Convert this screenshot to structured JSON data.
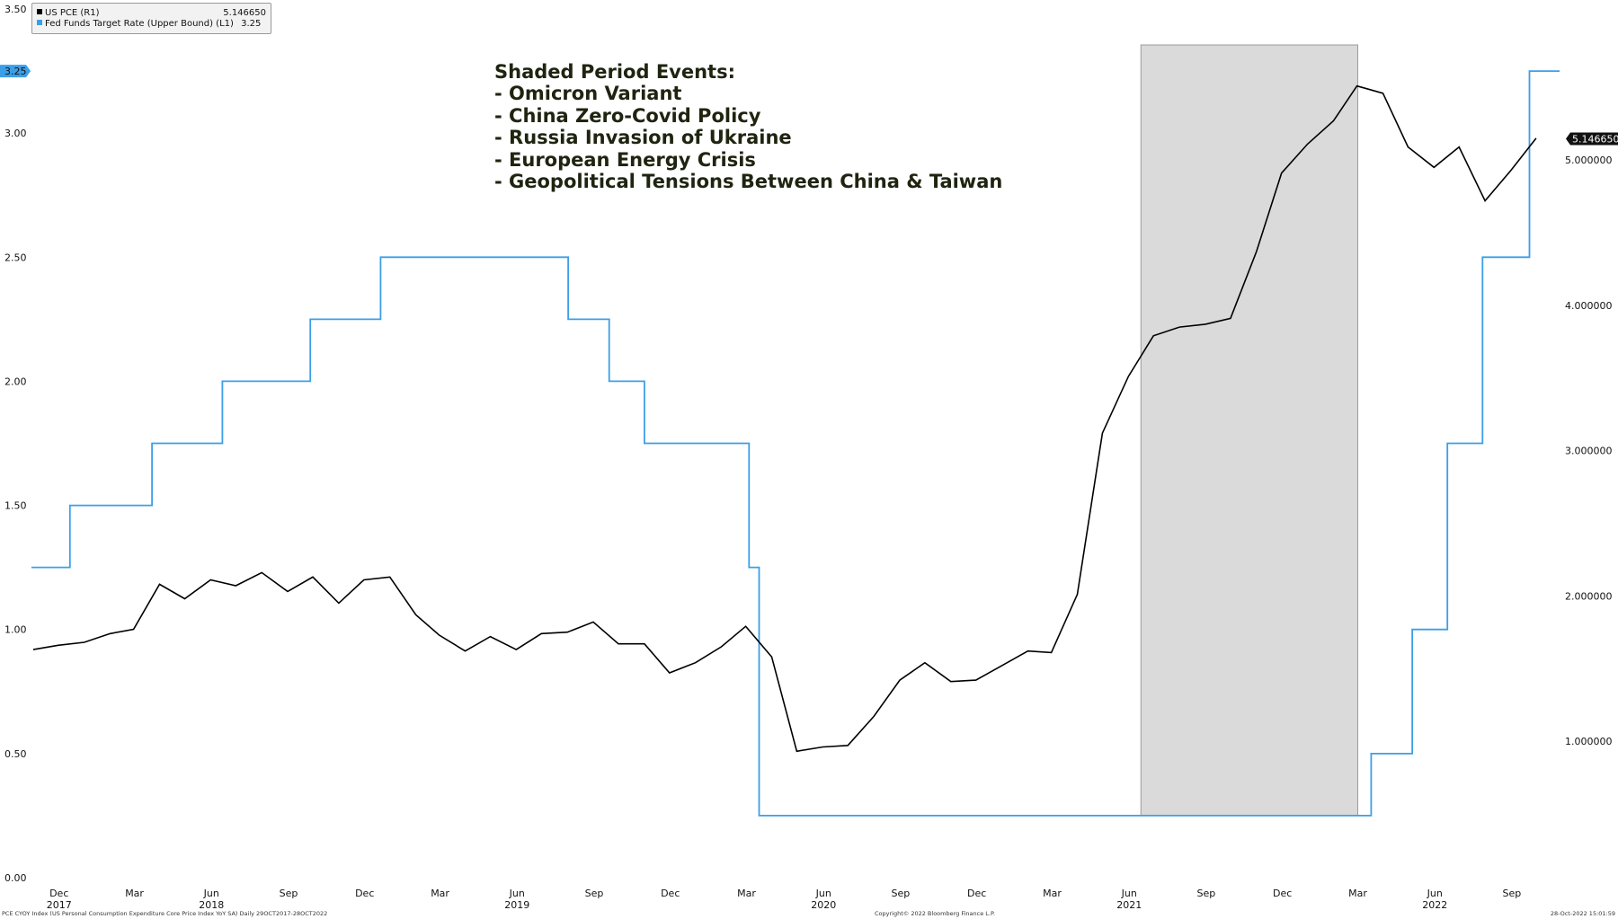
{
  "legend": [
    {
      "label": "US PCE (R1)",
      "value": "5.146650",
      "color": "#000000"
    },
    {
      "label": "Fed Funds Target Rate (Upper Bound) (L1)",
      "value": "3.25",
      "color": "#3b9fe8"
    }
  ],
  "annotation": {
    "title": "Shaded Period Events:",
    "items": [
      "- Omicron Variant",
      "- China Zero-Covid Policy",
      "- Russia Invasion of Ukraine",
      "- European Energy Crisis",
      "- Geopolitical Tensions Between China & Taiwan"
    ]
  },
  "footer": {
    "left": "PCE CYOY Index (US Personal Consumption Expenditure Core Price Index YoY SA)  Daily 29OCT2017-28OCT2022",
    "center": "Copyright© 2022 Bloomberg Finance L.P.",
    "right": "28-Oct-2022 15:01:59"
  },
  "chart_data": {
    "type": "line",
    "title": "",
    "x_range": [
      "2017-10-29",
      "2022-10-28"
    ],
    "month_ticks": [
      {
        "label": "Dec",
        "date": "2017-12-01"
      },
      {
        "label": "Mar",
        "date": "2018-03-01"
      },
      {
        "label": "Jun",
        "date": "2018-06-01"
      },
      {
        "label": "Sep",
        "date": "2018-09-01"
      },
      {
        "label": "Dec",
        "date": "2018-12-01"
      },
      {
        "label": "Mar",
        "date": "2019-03-01"
      },
      {
        "label": "Jun",
        "date": "2019-06-01"
      },
      {
        "label": "Sep",
        "date": "2019-09-01"
      },
      {
        "label": "Dec",
        "date": "2019-12-01"
      },
      {
        "label": "Mar",
        "date": "2020-03-01"
      },
      {
        "label": "Jun",
        "date": "2020-06-01"
      },
      {
        "label": "Sep",
        "date": "2020-09-01"
      },
      {
        "label": "Dec",
        "date": "2020-12-01"
      },
      {
        "label": "Mar",
        "date": "2021-03-01"
      },
      {
        "label": "Jun",
        "date": "2021-06-01"
      },
      {
        "label": "Sep",
        "date": "2021-09-01"
      },
      {
        "label": "Dec",
        "date": "2021-12-01"
      },
      {
        "label": "Mar",
        "date": "2022-03-01"
      },
      {
        "label": "Jun",
        "date": "2022-06-01"
      },
      {
        "label": "Sep",
        "date": "2022-09-01"
      }
    ],
    "year_ticks": [
      {
        "label": "2017",
        "date": "2017-12-01"
      },
      {
        "label": "2018",
        "date": "2018-06-01"
      },
      {
        "label": "2019",
        "date": "2019-06-01"
      },
      {
        "label": "2020",
        "date": "2020-06-01"
      },
      {
        "label": "2021",
        "date": "2021-06-01"
      },
      {
        "label": "2022",
        "date": "2022-06-01"
      }
    ],
    "left_axis": {
      "ylim": [
        0,
        3.5
      ],
      "ticks": [
        "0.00",
        "0.50",
        "1.00",
        "1.50",
        "2.00",
        "2.50",
        "3.00",
        "3.50"
      ]
    },
    "right_axis": {
      "ylim": [
        0.06,
        6.04
      ],
      "ticks": [
        "1.000000",
        "2.000000",
        "3.000000",
        "4.000000",
        "5.000000"
      ]
    },
    "shaded_period": [
      "2021-06-15",
      "2022-03-01"
    ],
    "last_value_labels": {
      "left": "3.25",
      "right": "5.146650"
    },
    "series": [
      {
        "name": "Fed Funds Target Rate (Upper Bound)",
        "axis": "left",
        "color": "#3b9fe8",
        "step": true,
        "points": [
          [
            "2017-10-29",
            1.25
          ],
          [
            "2017-12-14",
            1.5
          ],
          [
            "2018-03-22",
            1.75
          ],
          [
            "2018-06-14",
            2.0
          ],
          [
            "2018-09-27",
            2.25
          ],
          [
            "2018-12-20",
            2.5
          ],
          [
            "2019-08-01",
            2.25
          ],
          [
            "2019-09-19",
            2.0
          ],
          [
            "2019-10-31",
            1.75
          ],
          [
            "2020-03-04",
            1.25
          ],
          [
            "2020-03-16",
            0.25
          ],
          [
            "2022-03-17",
            0.5
          ],
          [
            "2022-05-05",
            1.0
          ],
          [
            "2022-06-16",
            1.75
          ],
          [
            "2022-07-28",
            2.5
          ],
          [
            "2022-09-22",
            3.25
          ],
          [
            "2022-10-28",
            3.25
          ]
        ]
      },
      {
        "name": "US PCE",
        "axis": "right",
        "color": "#000000",
        "step": false,
        "points": [
          [
            "2017-10-31",
            1.63
          ],
          [
            "2017-11-30",
            1.66
          ],
          [
            "2017-12-31",
            1.68
          ],
          [
            "2018-01-31",
            1.74
          ],
          [
            "2018-02-28",
            1.77
          ],
          [
            "2018-03-31",
            2.08
          ],
          [
            "2018-04-30",
            1.98
          ],
          [
            "2018-05-31",
            2.11
          ],
          [
            "2018-06-30",
            2.07
          ],
          [
            "2018-07-31",
            2.16
          ],
          [
            "2018-08-31",
            2.03
          ],
          [
            "2018-09-30",
            2.13
          ],
          [
            "2018-10-31",
            1.95
          ],
          [
            "2018-11-30",
            2.11
          ],
          [
            "2018-12-31",
            2.13
          ],
          [
            "2019-01-31",
            1.87
          ],
          [
            "2019-02-28",
            1.73
          ],
          [
            "2019-03-31",
            1.62
          ],
          [
            "2019-04-30",
            1.72
          ],
          [
            "2019-05-31",
            1.63
          ],
          [
            "2019-06-30",
            1.74
          ],
          [
            "2019-07-31",
            1.75
          ],
          [
            "2019-08-31",
            1.82
          ],
          [
            "2019-09-30",
            1.67
          ],
          [
            "2019-10-31",
            1.67
          ],
          [
            "2019-11-30",
            1.47
          ],
          [
            "2019-12-31",
            1.54
          ],
          [
            "2020-01-31",
            1.65
          ],
          [
            "2020-02-29",
            1.79
          ],
          [
            "2020-03-31",
            1.58
          ],
          [
            "2020-04-30",
            0.93
          ],
          [
            "2020-05-31",
            0.96
          ],
          [
            "2020-06-30",
            0.97
          ],
          [
            "2020-07-31",
            1.17
          ],
          [
            "2020-08-31",
            1.42
          ],
          [
            "2020-09-30",
            1.54
          ],
          [
            "2020-10-31",
            1.41
          ],
          [
            "2020-11-30",
            1.42
          ],
          [
            "2020-12-31",
            1.52
          ],
          [
            "2021-01-31",
            1.62
          ],
          [
            "2021-02-28",
            1.61
          ],
          [
            "2021-03-31",
            2.01
          ],
          [
            "2021-04-30",
            3.12
          ],
          [
            "2021-05-31",
            3.51
          ],
          [
            "2021-06-30",
            3.79
          ],
          [
            "2021-07-31",
            3.85
          ],
          [
            "2021-08-31",
            3.87
          ],
          [
            "2021-09-30",
            3.91
          ],
          [
            "2021-10-31",
            4.37
          ],
          [
            "2021-11-30",
            4.91
          ],
          [
            "2021-12-31",
            5.11
          ],
          [
            "2022-01-31",
            5.27
          ],
          [
            "2022-02-28",
            5.51
          ],
          [
            "2022-03-31",
            5.46
          ],
          [
            "2022-04-30",
            5.09
          ],
          [
            "2022-05-31",
            4.95
          ],
          [
            "2022-06-30",
            5.09
          ],
          [
            "2022-07-31",
            4.72
          ],
          [
            "2022-08-31",
            4.93
          ],
          [
            "2022-09-30",
            5.15
          ]
        ]
      }
    ]
  }
}
